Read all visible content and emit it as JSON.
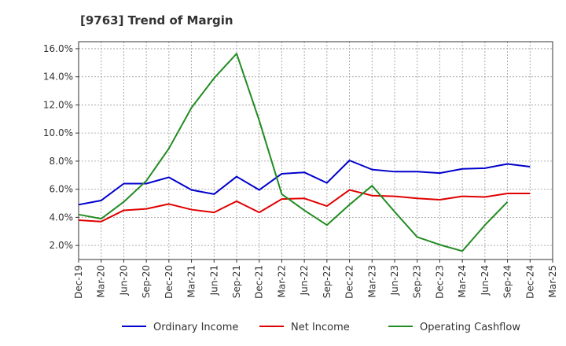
{
  "chart_data": {
    "type": "line",
    "title": "[9763]  Trend of Margin",
    "xlabel": "",
    "ylabel": "",
    "categories": [
      "Dec-19",
      "Mar-20",
      "Jun-20",
      "Sep-20",
      "Dec-20",
      "Mar-21",
      "Jun-21",
      "Sep-21",
      "Dec-21",
      "Mar-22",
      "Jun-22",
      "Sep-22",
      "Dec-22",
      "Mar-23",
      "Jun-23",
      "Sep-23",
      "Dec-23",
      "Mar-24",
      "Jun-24",
      "Sep-24",
      "Dec-24",
      "Mar-25"
    ],
    "x_tick_labels": [
      "Dec-19",
      "Mar-20",
      "Jun-20",
      "Sep-20",
      "Dec-20",
      "Mar-21",
      "Jun-21",
      "Sep-21",
      "Dec-21",
      "Mar-22",
      "Jun-22",
      "Sep-22",
      "Dec-22",
      "Mar-23",
      "Jun-23",
      "Sep-23",
      "Dec-23",
      "Mar-24",
      "Jun-24",
      "Sep-24",
      "Dec-24",
      "Mar-25"
    ],
    "ylim": [
      1.0,
      16.5
    ],
    "y_ticks": [
      2.0,
      4.0,
      6.0,
      8.0,
      10.0,
      12.0,
      14.0,
      16.0
    ],
    "y_tick_labels": [
      "2.0%",
      "4.0%",
      "6.0%",
      "8.0%",
      "10.0%",
      "12.0%",
      "14.0%",
      "16.0%"
    ],
    "grid": true,
    "legend_position": "bottom",
    "series": [
      {
        "name": "Ordinary Income",
        "color": "#0000cc",
        "values": [
          4.9,
          5.2,
          6.4,
          6.4,
          6.85,
          5.95,
          5.65,
          6.9,
          5.95,
          7.1,
          7.2,
          6.45,
          8.05,
          7.4,
          7.25,
          7.25,
          7.15,
          7.45,
          7.5,
          7.8,
          7.6,
          null
        ]
      },
      {
        "name": "Net Income",
        "color": "#e00000",
        "values": [
          3.8,
          3.7,
          4.5,
          4.6,
          4.95,
          4.55,
          4.35,
          5.15,
          4.35,
          5.3,
          5.35,
          4.8,
          5.95,
          5.55,
          5.5,
          5.35,
          5.25,
          5.5,
          5.45,
          5.7,
          5.7,
          null
        ]
      },
      {
        "name": "Operating Cashflow",
        "color": "#228b22",
        "values": [
          4.2,
          3.9,
          5.1,
          6.6,
          8.9,
          11.8,
          13.9,
          15.65,
          10.9,
          5.65,
          4.5,
          3.45,
          4.9,
          6.25,
          4.4,
          2.6,
          2.05,
          1.6,
          3.45,
          5.1,
          null,
          null
        ]
      }
    ]
  }
}
